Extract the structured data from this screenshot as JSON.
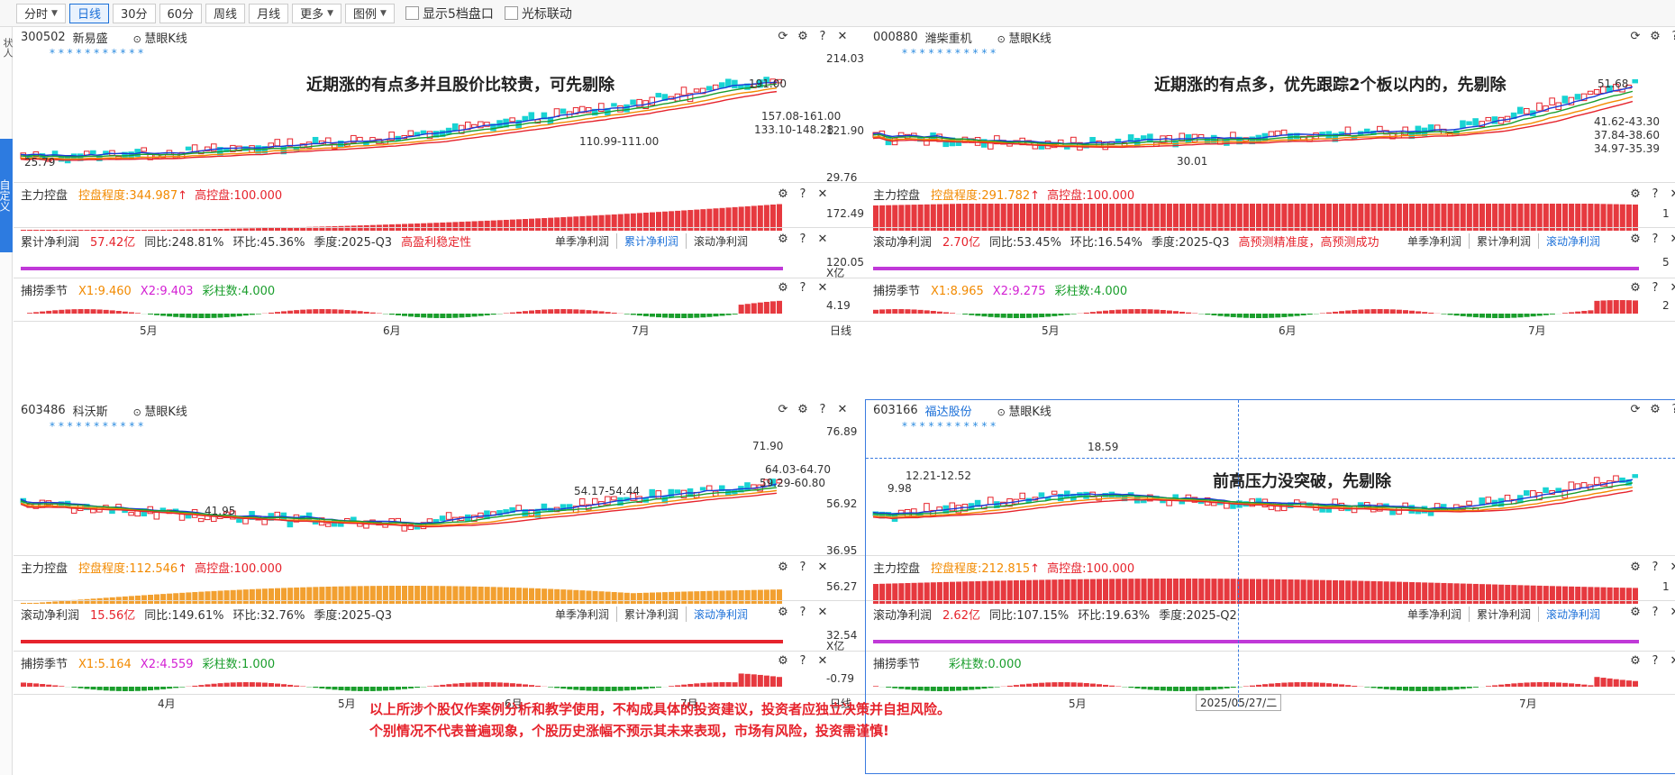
{
  "toolbar": {
    "items": [
      "分时",
      "日线",
      "30分",
      "60分",
      "周线",
      "月线",
      "更多",
      "图例"
    ],
    "active": "日线",
    "check1": "显示5档盘口",
    "check2": "光标联动"
  },
  "leftbar": {
    "top": "状人",
    "blue": "自定义"
  },
  "common": {
    "kline_label": "慧眼K线",
    "zhuli_label": "主力控盘",
    "gaokong": "高控盘:100.000",
    "buzhuo": "捕捞季节",
    "caizhu_label": "彩柱数",
    "tab_danji": "单季净利润",
    "tab_leiji": "累计净利润",
    "tab_gundong": "滚动净利润",
    "rili": "日线",
    "xiyi": "X亿"
  },
  "quads": [
    {
      "code": "300502",
      "name": "新易盛",
      "prices": [
        "214.03",
        "121.90",
        "29.76"
      ],
      "labels": [
        "191.00",
        "157.08-161.00",
        "133.10-148.28",
        "110.99-111.00",
        "25.79"
      ],
      "zhuli": {
        "kp": "控盘程度:344.987",
        "val": "172.49"
      },
      "profit": {
        "type": "累计净利润",
        "amount": "57.42亿",
        "tongbi": "同比:248.81%",
        "huanbi": "环比:45.36%",
        "season": "季度:2025-Q3",
        "note": "高盈利稳定性",
        "val": "120.05",
        "active_tab": "leiji"
      },
      "buzhuo": {
        "x1": "X1:9.460",
        "x2": "X2:9.403",
        "caizhu": "彩柱数:4.000",
        "val": "4.19"
      },
      "months": [
        "5月",
        "6月",
        "7月"
      ],
      "annotation": "近期涨的有点多并且股价比较贵，可先剔除"
    },
    {
      "code": "000880",
      "name": "潍柴重机",
      "prices": [
        "",
        "",
        ""
      ],
      "labels": [
        "51.68",
        "41.62-43.30",
        "37.84-38.60",
        "34.97-35.39",
        "30.01"
      ],
      "zhuli": {
        "kp": "控盘程度:291.782",
        "val": "1"
      },
      "profit": {
        "type": "滚动净利润",
        "amount": "2.70亿",
        "tongbi": "同比:53.45%",
        "huanbi": "环比:16.54%",
        "season": "季度:2025-Q3",
        "note": "高预测精准度，高预测成功",
        "val": "5",
        "active_tab": "gundong"
      },
      "buzhuo": {
        "x1": "X1:8.965",
        "x2": "X2:9.275",
        "caizhu": "彩柱数:4.000",
        "val": "2"
      },
      "months": [
        "5月",
        "6月",
        "7月"
      ],
      "annotation": "近期涨的有点多，优先跟踪2个板以内的，先剔除"
    },
    {
      "code": "603486",
      "name": "科沃斯",
      "prices": [
        "76.89",
        "56.92",
        "36.95"
      ],
      "labels": [
        "71.90",
        "64.03-64.70",
        "59.29-60.80",
        "54.17-54.44",
        "41.95"
      ],
      "zhuli": {
        "kp": "控盘程度:112.546",
        "val": "56.27"
      },
      "profit": {
        "type": "滚动净利润",
        "amount": "15.56亿",
        "tongbi": "同比:149.61%",
        "huanbi": "环比:32.76%",
        "season": "季度:2025-Q3",
        "note": "",
        "val": "32.54",
        "active_tab": "gundong"
      },
      "buzhuo": {
        "x1": "X1:5.164",
        "x2": "X2:4.559",
        "caizhu": "彩柱数:1.000",
        "val": "-0.79"
      },
      "months": [
        "4月",
        "5月",
        "6月",
        "7月"
      ],
      "annotation": ""
    },
    {
      "code": "603166",
      "name": "福达股份",
      "prices": [
        "",
        "",
        ""
      ],
      "labels": [
        "18.59",
        "12.21-12.52",
        "9.98"
      ],
      "zhuli": {
        "kp": "控盘程度:212.815",
        "val": "1"
      },
      "profit": {
        "type": "滚动净利润",
        "amount": "2.62亿",
        "tongbi": "同比:107.15%",
        "huanbi": "环比:19.63%",
        "season": "季度:2025-Q2",
        "note": "",
        "val": "",
        "active_tab": "gundong"
      },
      "buzhuo": {
        "x1": "",
        "x2": "",
        "caizhu": "彩柱数:0.000",
        "val": ""
      },
      "months": [
        "5月",
        "7月"
      ],
      "date": "2025/05/27/二",
      "annotation": "前高压力没突破，先剔除"
    }
  ],
  "disclaimer": {
    "line1": "以上所涉个股仅作案例分析和教学使用，不构成具体的投资建议，投资者应独立决策并自担风险。",
    "line2": "个别情况不代表普遍现象，个股历史涨幅不预示其未来表现，市场有风险，投资需谨慎!"
  }
}
